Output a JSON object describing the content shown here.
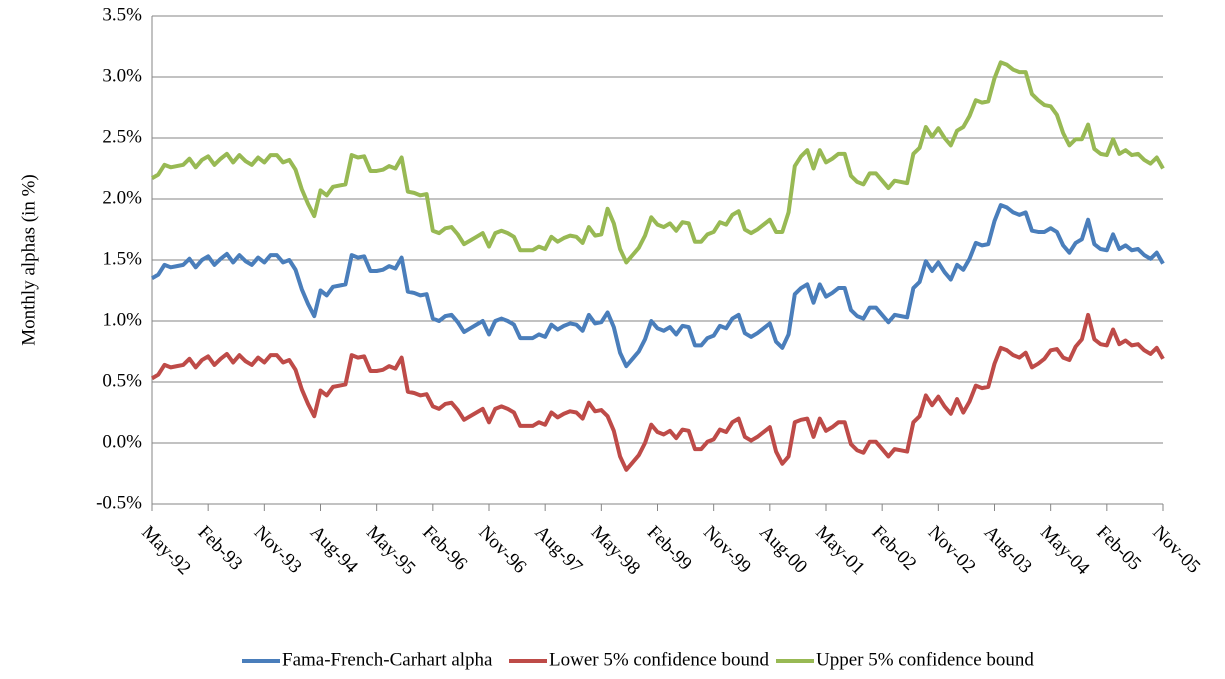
{
  "chart_data": {
    "type": "line",
    "y_label": "Monthly  alphas (in %)",
    "categories": [
      "May-92",
      null,
      null,
      null,
      null,
      null,
      null,
      null,
      null,
      "Feb-93",
      null,
      null,
      null,
      null,
      null,
      null,
      null,
      null,
      "Nov-93",
      null,
      null,
      null,
      null,
      null,
      null,
      null,
      null,
      "Aug-94",
      null,
      null,
      null,
      null,
      null,
      null,
      null,
      null,
      "May-95",
      null,
      null,
      null,
      null,
      null,
      null,
      null,
      null,
      "Feb-96",
      null,
      null,
      null,
      null,
      null,
      null,
      null,
      null,
      "Nov-96",
      null,
      null,
      null,
      null,
      null,
      null,
      null,
      null,
      "Aug-97",
      null,
      null,
      null,
      null,
      null,
      null,
      null,
      null,
      "May-98",
      null,
      null,
      null,
      null,
      null,
      null,
      null,
      null,
      "Feb-99",
      null,
      null,
      null,
      null,
      null,
      null,
      null,
      null,
      "Nov-99",
      null,
      null,
      null,
      null,
      null,
      null,
      null,
      null,
      "Aug-00",
      null,
      null,
      null,
      null,
      null,
      null,
      null,
      null,
      "May-01",
      null,
      null,
      null,
      null,
      null,
      null,
      null,
      null,
      "Feb-02",
      null,
      null,
      null,
      null,
      null,
      null,
      null,
      null,
      "Nov-02",
      null,
      null,
      null,
      null,
      null,
      null,
      null,
      null,
      "Aug-03",
      null,
      null,
      null,
      null,
      null,
      null,
      null,
      null,
      "May-04",
      null,
      null,
      null,
      null,
      null,
      null,
      null,
      null,
      "Feb-05",
      null,
      null,
      null,
      null,
      null,
      null,
      null,
      null,
      "Nov-05"
    ],
    "series": [
      {
        "name": "Fama-French-Carhart alpha",
        "color": "#4a7ebb",
        "values": [
          1.35,
          1.38,
          1.46,
          1.44,
          1.45,
          1.46,
          1.51,
          1.44,
          1.5,
          1.53,
          1.46,
          1.51,
          1.55,
          1.48,
          1.54,
          1.49,
          1.46,
          1.52,
          1.48,
          1.54,
          1.54,
          1.48,
          1.5,
          1.42,
          1.26,
          1.14,
          1.04,
          1.25,
          1.21,
          1.28,
          1.29,
          1.3,
          1.54,
          1.52,
          1.53,
          1.41,
          1.41,
          1.42,
          1.45,
          1.43,
          1.52,
          1.24,
          1.23,
          1.21,
          1.22,
          1.02,
          1.0,
          1.04,
          1.05,
          0.99,
          0.91,
          0.94,
          0.97,
          1.0,
          0.89,
          1.0,
          1.02,
          1.0,
          0.97,
          0.86,
          0.86,
          0.86,
          0.89,
          0.87,
          0.97,
          0.93,
          0.96,
          0.98,
          0.97,
          0.92,
          1.05,
          0.98,
          0.99,
          1.07,
          0.95,
          0.74,
          0.63,
          0.69,
          0.75,
          0.85,
          1.0,
          0.94,
          0.92,
          0.95,
          0.89,
          0.96,
          0.95,
          0.8,
          0.8,
          0.86,
          0.88,
          0.96,
          0.94,
          1.02,
          1.05,
          0.9,
          0.87,
          0.9,
          0.94,
          0.98,
          0.83,
          0.78,
          0.89,
          1.22,
          1.27,
          1.3,
          1.15,
          1.3,
          1.2,
          1.23,
          1.27,
          1.27,
          1.09,
          1.04,
          1.02,
          1.11,
          1.11,
          1.05,
          0.99,
          1.05,
          1.04,
          1.03,
          1.27,
          1.32,
          1.49,
          1.41,
          1.48,
          1.4,
          1.34,
          1.46,
          1.42,
          1.51,
          1.64,
          1.62,
          1.63,
          1.82,
          1.95,
          1.93,
          1.89,
          1.87,
          1.89,
          1.74,
          1.73,
          1.73,
          1.76,
          1.73,
          1.62,
          1.56,
          1.64,
          1.67,
          1.83,
          1.63,
          1.59,
          1.58,
          1.71,
          1.59,
          1.62,
          1.58,
          1.59,
          1.54,
          1.51,
          1.56,
          1.47
        ]
      },
      {
        "name": "Lower 5% confidence bound",
        "color": "#be4b48",
        "values": [
          0.53,
          0.56,
          0.64,
          0.62,
          0.63,
          0.64,
          0.69,
          0.62,
          0.68,
          0.71,
          0.64,
          0.69,
          0.73,
          0.66,
          0.72,
          0.67,
          0.64,
          0.7,
          0.66,
          0.72,
          0.72,
          0.66,
          0.68,
          0.6,
          0.44,
          0.32,
          0.22,
          0.43,
          0.39,
          0.46,
          0.47,
          0.48,
          0.72,
          0.7,
          0.71,
          0.59,
          0.59,
          0.6,
          0.63,
          0.61,
          0.7,
          0.42,
          0.41,
          0.39,
          0.4,
          0.3,
          0.28,
          0.32,
          0.33,
          0.27,
          0.19,
          0.22,
          0.25,
          0.28,
          0.17,
          0.28,
          0.3,
          0.28,
          0.25,
          0.14,
          0.14,
          0.14,
          0.17,
          0.15,
          0.25,
          0.21,
          0.24,
          0.26,
          0.25,
          0.2,
          0.33,
          0.26,
          0.27,
          0.22,
          0.1,
          -0.11,
          -0.22,
          -0.16,
          -0.1,
          0.0,
          0.15,
          0.09,
          0.07,
          0.1,
          0.04,
          0.11,
          0.1,
          -0.05,
          -0.05,
          0.01,
          0.03,
          0.11,
          0.09,
          0.17,
          0.2,
          0.05,
          0.02,
          0.05,
          0.09,
          0.13,
          -0.07,
          -0.17,
          -0.11,
          0.17,
          0.19,
          0.2,
          0.05,
          0.2,
          0.1,
          0.13,
          0.17,
          0.17,
          -0.01,
          -0.06,
          -0.08,
          0.01,
          0.01,
          -0.05,
          -0.11,
          -0.05,
          -0.06,
          -0.07,
          0.17,
          0.22,
          0.39,
          0.31,
          0.38,
          0.3,
          0.24,
          0.36,
          0.25,
          0.34,
          0.47,
          0.45,
          0.46,
          0.65,
          0.78,
          0.76,
          0.72,
          0.7,
          0.74,
          0.62,
          0.65,
          0.69,
          0.76,
          0.77,
          0.7,
          0.68,
          0.79,
          0.85,
          1.05,
          0.85,
          0.81,
          0.8,
          0.93,
          0.81,
          0.84,
          0.8,
          0.81,
          0.76,
          0.73,
          0.78,
          0.69
        ]
      },
      {
        "name": "Upper 5% confidence bound",
        "color": "#98b954",
        "values": [
          2.17,
          2.2,
          2.28,
          2.26,
          2.27,
          2.28,
          2.33,
          2.26,
          2.32,
          2.35,
          2.28,
          2.33,
          2.37,
          2.3,
          2.36,
          2.31,
          2.28,
          2.34,
          2.3,
          2.36,
          2.36,
          2.3,
          2.32,
          2.24,
          2.08,
          1.96,
          1.86,
          2.07,
          2.03,
          2.1,
          2.11,
          2.12,
          2.36,
          2.34,
          2.35,
          2.23,
          2.23,
          2.24,
          2.27,
          2.25,
          2.34,
          2.06,
          2.05,
          2.03,
          2.04,
          1.74,
          1.72,
          1.76,
          1.77,
          1.71,
          1.63,
          1.66,
          1.69,
          1.72,
          1.61,
          1.72,
          1.74,
          1.72,
          1.69,
          1.58,
          1.58,
          1.58,
          1.61,
          1.59,
          1.69,
          1.65,
          1.68,
          1.7,
          1.69,
          1.64,
          1.77,
          1.7,
          1.71,
          1.92,
          1.8,
          1.59,
          1.48,
          1.54,
          1.6,
          1.7,
          1.85,
          1.79,
          1.77,
          1.8,
          1.74,
          1.81,
          1.8,
          1.65,
          1.65,
          1.71,
          1.73,
          1.81,
          1.79,
          1.87,
          1.9,
          1.75,
          1.72,
          1.75,
          1.79,
          1.83,
          1.73,
          1.73,
          1.89,
          2.27,
          2.35,
          2.4,
          2.25,
          2.4,
          2.3,
          2.33,
          2.37,
          2.37,
          2.19,
          2.14,
          2.12,
          2.21,
          2.21,
          2.15,
          2.09,
          2.15,
          2.14,
          2.13,
          2.37,
          2.42,
          2.59,
          2.51,
          2.58,
          2.5,
          2.44,
          2.56,
          2.59,
          2.68,
          2.81,
          2.79,
          2.8,
          2.99,
          3.12,
          3.1,
          3.06,
          3.04,
          3.04,
          2.86,
          2.81,
          2.77,
          2.76,
          2.69,
          2.54,
          2.44,
          2.49,
          2.49,
          2.61,
          2.41,
          2.37,
          2.36,
          2.49,
          2.37,
          2.4,
          2.36,
          2.37,
          2.32,
          2.29,
          2.34,
          2.25
        ]
      }
    ],
    "ylim": [
      -0.5,
      3.5
    ],
    "yticks": [
      {
        "value": -0.5,
        "label": "-0.5%"
      },
      {
        "value": 0,
        "label": "0.0%"
      },
      {
        "value": 0.5,
        "label": "0.5%"
      },
      {
        "value": 1,
        "label": "1.0%"
      },
      {
        "value": 1.5,
        "label": "1.5%"
      },
      {
        "value": 2,
        "label": "2.0%"
      },
      {
        "value": 2.5,
        "label": "2.5%"
      },
      {
        "value": 3,
        "label": "3.0%"
      },
      {
        "value": 3.5,
        "label": "3.5%"
      }
    ],
    "grid": true,
    "legend": "bottom"
  }
}
